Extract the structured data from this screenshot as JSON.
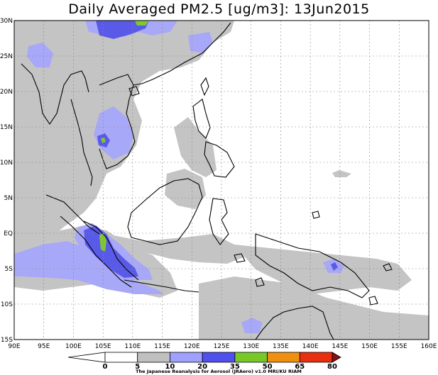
{
  "title": "Daily Averaged PM2.5 [ug/m3]: 13Jun2015",
  "lat_labels": [
    "30N",
    "25N",
    "20N",
    "15N",
    "10N",
    "5N",
    "EQ",
    "5S",
    "10S",
    "15S"
  ],
  "lon_labels": [
    "90E",
    "95E",
    "100E",
    "105E",
    "110E",
    "115E",
    "120E",
    "125E",
    "130E",
    "135E",
    "140E",
    "145E",
    "150E",
    "155E",
    "160E"
  ],
  "colorbar": {
    "labels": [
      "0",
      "5",
      "10",
      "20",
      "35",
      "50",
      "65",
      "80"
    ],
    "colors": [
      "#ffffff",
      "#c0c0c0",
      "#a0a0ff",
      "#5050ee",
      "#78c828",
      "#f09010",
      "#e83010",
      "#8c1010"
    ]
  },
  "credit": "The Japanese Reanalysis for Aerosol (JRAero) v1.0 MRI/KU RIAM",
  "colors": {
    "low": "#c4c4c4",
    "moderate": "#a8a8f8",
    "high": "#5a5ae8",
    "very_high": "#80c830",
    "coast": "#000000",
    "grid": "#888888"
  }
}
